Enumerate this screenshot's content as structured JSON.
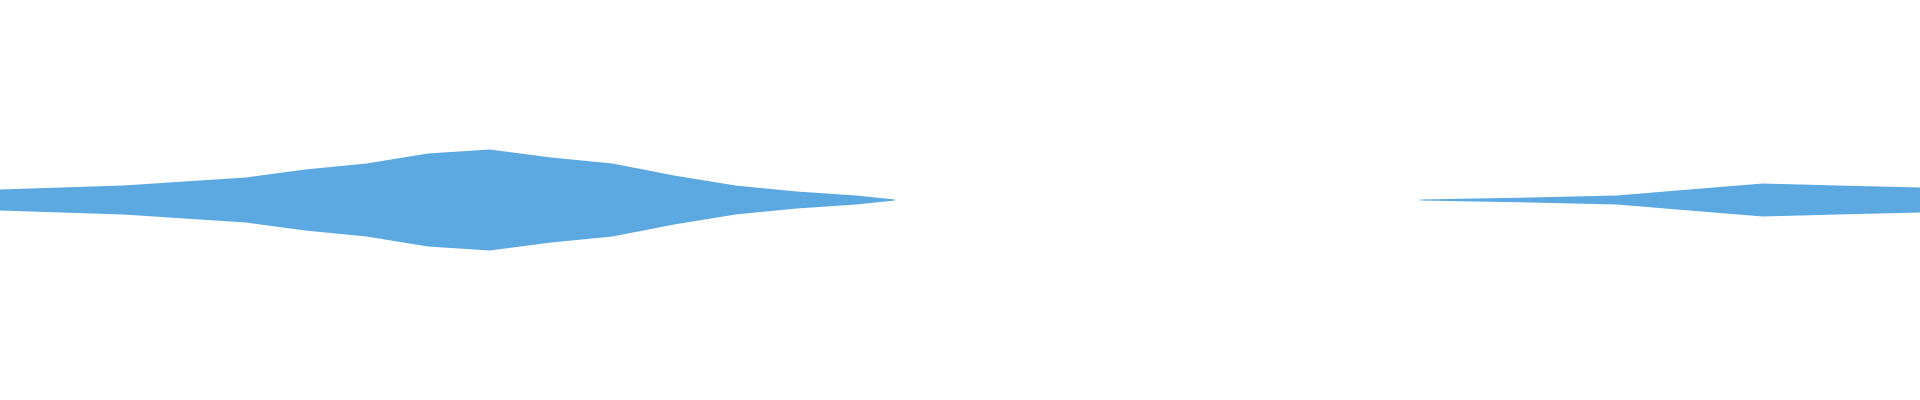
{
  "chart_data": {
    "type": "waveform",
    "color": "#5ba9e0",
    "x": [
      0,
      6.4,
      12.8,
      15.9,
      19.1,
      22.3,
      25.5,
      28.7,
      31.9,
      35.1,
      38.3,
      41.5,
      44.6,
      46.6,
      60,
      74,
      79.7,
      84.2,
      88,
      91.8,
      95.7,
      100
    ],
    "values": [
      0.05,
      0.07,
      0.11,
      0.15,
      0.18,
      0.23,
      0.25,
      0.21,
      0.18,
      0.12,
      0.07,
      0.04,
      0.02,
      0,
      null,
      0,
      0.01,
      0.02,
      0.05,
      0.08,
      0.07,
      0.06
    ],
    "xlim": [
      0,
      100
    ],
    "ylim": [
      -1,
      1
    ]
  }
}
